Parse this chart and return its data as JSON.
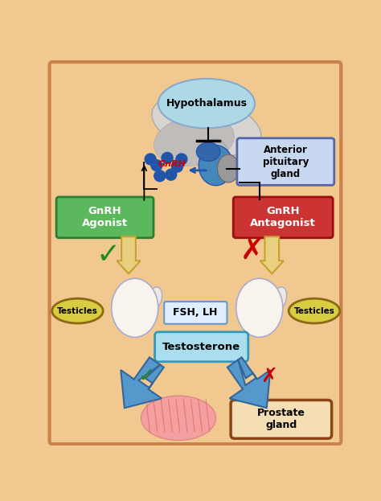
{
  "bg_color": "#F2C891",
  "border_color": "#C8824A",
  "hypothalamus_label": "Hypothalamus",
  "hypothalamus_color": "#ADD8E6",
  "hypothalamus_ec": "#88AACC",
  "pituitary_label": "Anterior\npituitary\ngland",
  "pituitary_box_color": "#C8D8F0",
  "pituitary_border": "#5566AA",
  "gnrh_label": "GnRH",
  "gnrh_color": "#CC0000",
  "agonist_label": "GnRH\nAgonist",
  "agonist_bg": "#5CB85C",
  "agonist_border": "#2E7D32",
  "antagonist_label": "GnRH\nAntagonist",
  "antagonist_bg": "#CC3333",
  "antagonist_border": "#991111",
  "testicles_label": "Testicles",
  "testicles_bg": "#D4C840",
  "testicles_border": "#8B6914",
  "fsh_lh_label": "FSH, LH",
  "fsh_lh_box_color": "#E0EEFF",
  "fsh_lh_border": "#6699CC",
  "testosterone_label": "Testosterone",
  "testosterone_bg": "#AADDEE",
  "testosterone_border": "#3399BB",
  "prostate_label": "Prostate\ngland",
  "prostate_border": "#8B4513",
  "prostate_bg": "#F5DEB3",
  "prostate_fill": "#F4A0A0",
  "arrow_color_gold": "#C8A830",
  "arrow_color_blue": "#5599CC",
  "arrow_ec_blue": "#336699",
  "check_color": "#228B22",
  "x_color": "#CC0000",
  "dot_color": "#2255AA",
  "brain_color1": "#D8D4D0",
  "brain_color2": "#C0BCBA",
  "pituitary_blue": "#4477AA",
  "pituitary_gray": "#888888"
}
